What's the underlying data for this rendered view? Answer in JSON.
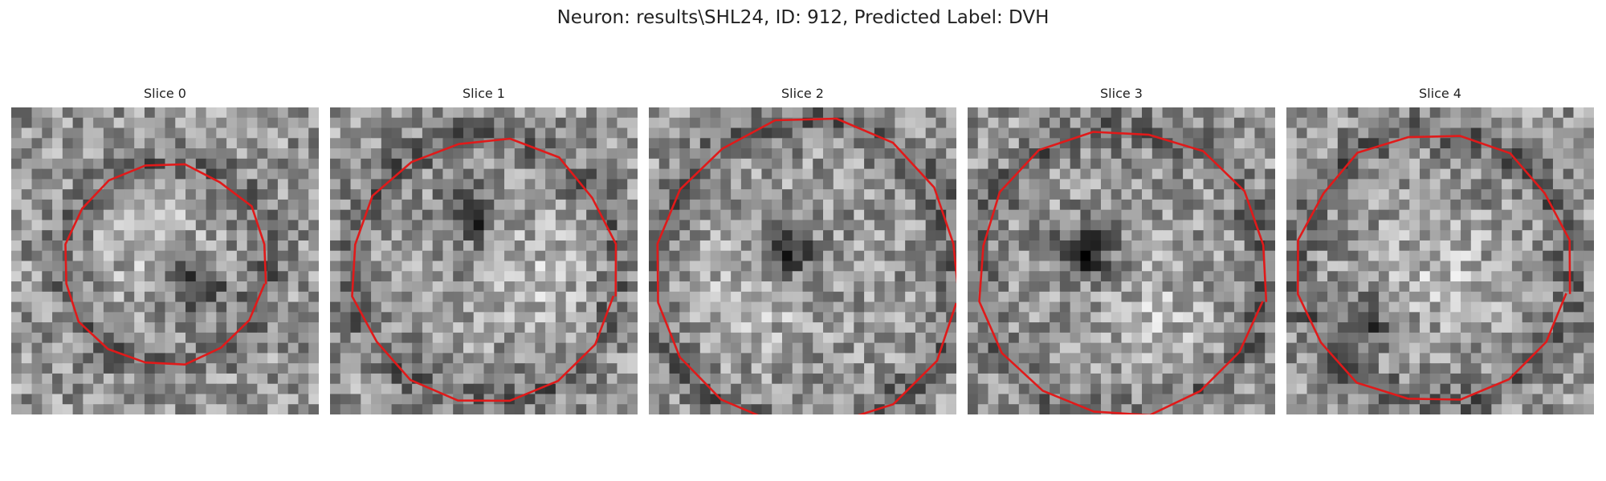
{
  "figure": {
    "title": "Neuron: results\\SHL24, ID: 912, Predicted Label: DVH"
  },
  "colors": {
    "background": "#ffffff",
    "contour": "#e01a1a",
    "text": "#222222"
  },
  "rendering": {
    "colormap": "gray",
    "grid_cells": 30
  },
  "slices": [
    {
      "label": "Slice 0",
      "contour_shape": "closed-polygon",
      "center": [
        0.5,
        0.51
      ],
      "radius": 0.33,
      "dark_spot": [
        0.6,
        0.58
      ],
      "bright_spot": [
        0.45,
        0.42
      ]
    },
    {
      "label": "Slice 1",
      "contour_shape": "closed-polygon",
      "center": [
        0.5,
        0.53
      ],
      "radius": 0.43,
      "dark_spot": [
        0.45,
        0.35
      ],
      "bright_spot": [
        0.68,
        0.55
      ]
    },
    {
      "label": "Slice 2",
      "contour_shape": "open-polygon",
      "center": [
        0.51,
        0.54
      ],
      "radius": 0.5,
      "dark_spot": [
        0.45,
        0.47
      ],
      "bright_spot": [
        0.35,
        0.6
      ]
    },
    {
      "label": "Slice 3",
      "contour_shape": "open-polygon",
      "center": [
        0.5,
        0.54
      ],
      "radius": 0.47,
      "dark_spot": [
        0.38,
        0.47
      ],
      "bright_spot": [
        0.6,
        0.7
      ]
    },
    {
      "label": "Slice 4",
      "contour_shape": "open-polygon",
      "center": [
        0.48,
        0.52
      ],
      "radius": 0.44,
      "dark_spot": [
        0.25,
        0.7
      ],
      "bright_spot": [
        0.5,
        0.55
      ]
    }
  ]
}
